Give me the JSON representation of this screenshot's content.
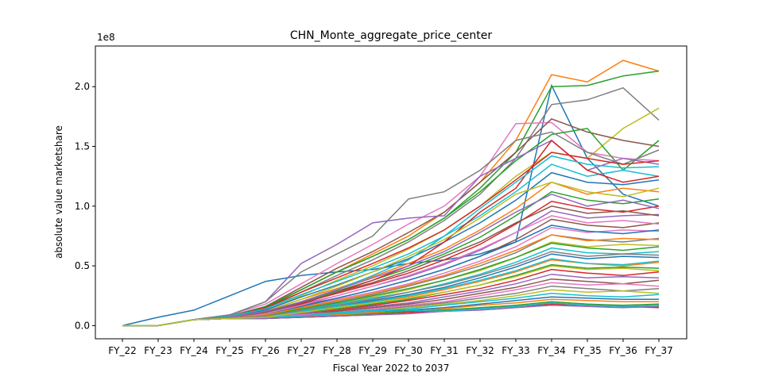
{
  "chart_data": {
    "type": "line",
    "title": "CHN_Monte_aggregate_price_center",
    "xlabel": "Fiscal Year 2022 to 2037",
    "ylabel": "absolute value marketshare",
    "y_offset_text": "1e8",
    "categories": [
      "FY_22",
      "FY_23",
      "FY_24",
      "FY_25",
      "FY_26",
      "FY_27",
      "FY_28",
      "FY_29",
      "FY_30",
      "FY_31",
      "FY_32",
      "FY_33",
      "FY_34",
      "FY_35",
      "FY_36",
      "FY_37"
    ],
    "yticks": [
      0.0,
      0.5,
      1.0,
      1.5,
      2.0
    ],
    "ytick_labels": [
      "0.0",
      "0.5",
      "1.0",
      "1.5",
      "2.0"
    ],
    "ylim": [
      -0.11,
      2.34
    ],
    "y_unit": "1e8",
    "grid": false,
    "legend": "none",
    "palette": [
      "#1f77b4",
      "#ff7f0e",
      "#2ca02c",
      "#d62728",
      "#9467bd",
      "#8c564b",
      "#e377c2",
      "#7f7f7f",
      "#bcbd22",
      "#17becf"
    ],
    "series_count_note": "hundreds of Monte Carlo runs",
    "series": [
      {
        "values": [
          0,
          0.07,
          0.13,
          0.25,
          0.37,
          0.42,
          0.45,
          0.47,
          0.52,
          0.55,
          0.6,
          0.7,
          2.01,
          1.4,
          1.1,
          1.0
        ],
        "color": "#1f77b4"
      },
      {
        "values": [
          0,
          0,
          0.05,
          0.08,
          0.15,
          0.3,
          0.45,
          0.6,
          0.75,
          0.95,
          1.2,
          1.55,
          2.1,
          2.04,
          2.22,
          2.13
        ],
        "color": "#ff7f0e"
      },
      {
        "values": [
          0,
          0,
          0.05,
          0.08,
          0.15,
          0.3,
          0.45,
          0.58,
          0.72,
          0.9,
          1.15,
          1.45,
          2.0,
          2.01,
          2.09,
          2.13
        ],
        "color": "#2ca02c"
      },
      {
        "values": [
          0,
          0,
          0.05,
          0.08,
          0.14,
          0.28,
          0.42,
          0.55,
          0.7,
          0.88,
          1.1,
          1.4,
          1.85,
          1.89,
          1.99,
          1.72
        ],
        "color": "#7f7f7f"
      },
      {
        "values": [
          0,
          0,
          0.05,
          0.07,
          0.13,
          0.25,
          0.38,
          0.5,
          0.64,
          0.8,
          1.0,
          1.25,
          1.45,
          1.4,
          1.65,
          1.82
        ],
        "color": "#bcbd22"
      },
      {
        "values": [
          0,
          0,
          0.05,
          0.09,
          0.18,
          0.35,
          0.52,
          0.68,
          0.85,
          1.0,
          1.25,
          1.69,
          1.7,
          1.45,
          1.4,
          1.38
        ],
        "color": "#e377c2"
      },
      {
        "values": [
          0,
          0,
          0.05,
          0.08,
          0.16,
          0.32,
          0.48,
          0.62,
          0.78,
          0.95,
          1.2,
          1.45,
          1.73,
          1.62,
          1.55,
          1.5
        ],
        "color": "#8c564b"
      },
      {
        "values": [
          0,
          0,
          0.05,
          0.08,
          0.16,
          0.3,
          0.45,
          0.58,
          0.72,
          0.9,
          1.12,
          1.38,
          1.6,
          1.65,
          1.3,
          1.55
        ],
        "color": "#2ca02c"
      },
      {
        "values": [
          0,
          0,
          0.05,
          0.09,
          0.2,
          0.52,
          0.68,
          0.86,
          0.9,
          0.92,
          1.25,
          1.4,
          1.55,
          1.3,
          1.4,
          1.35
        ],
        "color": "#9467bd"
      },
      {
        "values": [
          0,
          0,
          0.05,
          0.09,
          0.2,
          0.45,
          0.6,
          0.75,
          1.06,
          1.12,
          1.3,
          1.55,
          1.62,
          1.45,
          1.35,
          1.47
        ],
        "color": "#7f7f7f"
      },
      {
        "values": [
          0,
          0,
          0.05,
          0.08,
          0.15,
          0.28,
          0.4,
          0.52,
          0.65,
          0.8,
          1.0,
          1.22,
          1.45,
          1.4,
          1.35,
          1.38
        ],
        "color": "#d62728"
      },
      {
        "values": [
          0,
          0,
          0.05,
          0.08,
          0.14,
          0.26,
          0.37,
          0.48,
          0.6,
          0.75,
          0.92,
          1.12,
          1.35,
          1.25,
          1.3,
          1.25
        ],
        "color": "#17becf"
      },
      {
        "values": [
          0,
          0,
          0.05,
          0.07,
          0.13,
          0.24,
          0.34,
          0.45,
          0.56,
          0.7,
          0.86,
          1.05,
          1.28,
          1.2,
          1.18,
          1.22
        ],
        "color": "#1f77b4"
      },
      {
        "values": [
          0,
          0,
          0.05,
          0.07,
          0.12,
          0.22,
          0.31,
          0.41,
          0.52,
          0.64,
          0.8,
          0.98,
          1.2,
          1.1,
          1.15,
          1.12
        ],
        "color": "#ff7f0e"
      },
      {
        "values": [
          0,
          0,
          0.05,
          0.07,
          0.11,
          0.2,
          0.29,
          0.38,
          0.48,
          0.6,
          0.74,
          0.92,
          1.12,
          1.05,
          1.02,
          1.06
        ],
        "color": "#2ca02c"
      },
      {
        "values": [
          0,
          0,
          0.05,
          0.07,
          0.11,
          0.19,
          0.27,
          0.35,
          0.44,
          0.55,
          0.68,
          0.85,
          1.04,
          0.98,
          0.95,
          1.0
        ],
        "color": "#d62728"
      },
      {
        "values": [
          0,
          0,
          0.05,
          0.07,
          0.1,
          0.18,
          0.25,
          0.33,
          0.41,
          0.51,
          0.63,
          0.78,
          0.96,
          0.9,
          0.92,
          0.93
        ],
        "color": "#9467bd"
      },
      {
        "values": [
          0,
          0,
          0.05,
          0.06,
          0.1,
          0.17,
          0.23,
          0.3,
          0.38,
          0.47,
          0.58,
          0.72,
          0.89,
          0.84,
          0.82,
          0.86
        ],
        "color": "#8c564b"
      },
      {
        "values": [
          0,
          0,
          0.05,
          0.06,
          0.09,
          0.16,
          0.22,
          0.28,
          0.35,
          0.44,
          0.54,
          0.66,
          0.82,
          0.78,
          0.8,
          0.79
        ],
        "color": "#e377c2"
      },
      {
        "values": [
          0,
          0,
          0.05,
          0.06,
          0.09,
          0.15,
          0.2,
          0.26,
          0.33,
          0.41,
          0.5,
          0.61,
          0.76,
          0.72,
          0.7,
          0.73
        ],
        "color": "#7f7f7f"
      },
      {
        "values": [
          0,
          0,
          0.05,
          0.06,
          0.09,
          0.14,
          0.19,
          0.24,
          0.3,
          0.38,
          0.46,
          0.57,
          0.7,
          0.66,
          0.68,
          0.67
        ],
        "color": "#bcbd22"
      },
      {
        "values": [
          0,
          0,
          0.05,
          0.06,
          0.08,
          0.13,
          0.18,
          0.23,
          0.28,
          0.35,
          0.43,
          0.53,
          0.65,
          0.61,
          0.6,
          0.62
        ],
        "color": "#17becf"
      },
      {
        "values": [
          0,
          0,
          0.05,
          0.06,
          0.08,
          0.12,
          0.16,
          0.21,
          0.26,
          0.32,
          0.4,
          0.49,
          0.6,
          0.56,
          0.58,
          0.57
        ],
        "color": "#1f77b4"
      },
      {
        "values": [
          0,
          0,
          0.05,
          0.06,
          0.08,
          0.12,
          0.15,
          0.2,
          0.24,
          0.3,
          0.37,
          0.45,
          0.55,
          0.52,
          0.5,
          0.53
        ],
        "color": "#ff7f0e"
      },
      {
        "values": [
          0,
          0,
          0.05,
          0.06,
          0.07,
          0.11,
          0.14,
          0.18,
          0.22,
          0.28,
          0.34,
          0.42,
          0.51,
          0.48,
          0.49,
          0.48
        ],
        "color": "#2ca02c"
      },
      {
        "values": [
          0,
          0,
          0.05,
          0.06,
          0.07,
          0.1,
          0.13,
          0.17,
          0.21,
          0.26,
          0.31,
          0.38,
          0.47,
          0.44,
          0.42,
          0.45
        ],
        "color": "#d62728"
      },
      {
        "values": [
          0,
          0,
          0.05,
          0.06,
          0.07,
          0.1,
          0.12,
          0.16,
          0.19,
          0.24,
          0.29,
          0.35,
          0.43,
          0.4,
          0.41,
          0.4
        ],
        "color": "#9467bd"
      },
      {
        "values": [
          0,
          0,
          0.05,
          0.06,
          0.07,
          0.09,
          0.12,
          0.15,
          0.18,
          0.22,
          0.27,
          0.32,
          0.39,
          0.37,
          0.35,
          0.38
        ],
        "color": "#8c564b"
      },
      {
        "values": [
          0,
          0,
          0.05,
          0.06,
          0.07,
          0.09,
          0.11,
          0.14,
          0.17,
          0.2,
          0.25,
          0.3,
          0.36,
          0.34,
          0.35,
          0.33
        ],
        "color": "#e377c2"
      },
      {
        "values": [
          0,
          0,
          0.05,
          0.06,
          0.07,
          0.08,
          0.11,
          0.13,
          0.16,
          0.19,
          0.23,
          0.27,
          0.33,
          0.31,
          0.29,
          0.31
        ],
        "color": "#7f7f7f"
      },
      {
        "values": [
          0,
          0,
          0.05,
          0.06,
          0.06,
          0.08,
          0.1,
          0.12,
          0.15,
          0.18,
          0.21,
          0.25,
          0.3,
          0.28,
          0.29,
          0.27
        ],
        "color": "#bcbd22"
      },
      {
        "values": [
          0,
          0,
          0.05,
          0.06,
          0.06,
          0.08,
          0.1,
          0.12,
          0.14,
          0.17,
          0.2,
          0.23,
          0.27,
          0.25,
          0.24,
          0.26
        ],
        "color": "#17becf"
      },
      {
        "values": [
          0,
          0,
          0.05,
          0.06,
          0.06,
          0.07,
          0.09,
          0.11,
          0.13,
          0.15,
          0.18,
          0.21,
          0.24,
          0.23,
          0.22,
          0.22
        ],
        "color": "#1f77b4"
      },
      {
        "values": [
          0,
          0,
          0.05,
          0.06,
          0.06,
          0.07,
          0.09,
          0.11,
          0.12,
          0.14,
          0.17,
          0.19,
          0.22,
          0.21,
          0.2,
          0.2
        ],
        "color": "#ff7f0e"
      },
      {
        "values": [
          0,
          0,
          0.05,
          0.06,
          0.06,
          0.07,
          0.08,
          0.1,
          0.12,
          0.13,
          0.15,
          0.17,
          0.2,
          0.18,
          0.17,
          0.18
        ],
        "color": "#2ca02c"
      },
      {
        "values": [
          0,
          0,
          0.05,
          0.06,
          0.06,
          0.07,
          0.08,
          0.09,
          0.11,
          0.12,
          0.14,
          0.16,
          0.18,
          0.17,
          0.16,
          0.15
        ],
        "color": "#d62728"
      },
      {
        "values": [
          0,
          0,
          0.05,
          0.06,
          0.06,
          0.07,
          0.08,
          0.09,
          0.1,
          0.12,
          0.13,
          0.15,
          0.17,
          0.16,
          0.15,
          0.16
        ],
        "color": "#9467bd"
      },
      {
        "values": [
          0,
          0,
          0.05,
          0.06,
          0.07,
          0.08,
          0.11,
          0.13,
          0.13,
          0.12,
          0.14,
          0.16,
          0.19,
          0.17,
          0.16,
          0.17
        ],
        "color": "#17becf"
      },
      {
        "values": [
          0,
          0,
          0.05,
          0.06,
          0.09,
          0.18,
          0.28,
          0.38,
          0.5,
          0.7,
          0.95,
          1.15,
          1.55,
          1.3,
          1.2,
          1.25
        ],
        "color": "#d62728"
      },
      {
        "values": [
          0,
          0,
          0.05,
          0.06,
          0.1,
          0.2,
          0.3,
          0.42,
          0.55,
          0.75,
          0.98,
          1.2,
          1.42,
          1.35,
          1.32,
          1.33
        ],
        "color": "#17becf"
      },
      {
        "values": [
          0,
          0,
          0.05,
          0.07,
          0.12,
          0.22,
          0.33,
          0.45,
          0.58,
          0.72,
          0.9,
          1.1,
          1.2,
          1.12,
          1.08,
          1.15
        ],
        "color": "#bcbd22"
      },
      {
        "values": [
          0,
          0,
          0.05,
          0.07,
          0.12,
          0.2,
          0.3,
          0.4,
          0.5,
          0.62,
          0.78,
          0.95,
          1.1,
          1.0,
          1.05,
          0.98
        ],
        "color": "#9467bd"
      },
      {
        "values": [
          0,
          0,
          0.05,
          0.06,
          0.11,
          0.19,
          0.28,
          0.36,
          0.46,
          0.58,
          0.7,
          0.86,
          1.0,
          0.94,
          0.96,
          0.92
        ],
        "color": "#8c564b"
      },
      {
        "values": [
          0,
          0,
          0.05,
          0.06,
          0.1,
          0.17,
          0.25,
          0.33,
          0.42,
          0.52,
          0.64,
          0.78,
          0.92,
          0.86,
          0.88,
          0.85
        ],
        "color": "#e377c2"
      },
      {
        "values": [
          0,
          0,
          0.05,
          0.06,
          0.09,
          0.16,
          0.23,
          0.3,
          0.38,
          0.47,
          0.58,
          0.7,
          0.84,
          0.79,
          0.77,
          0.8
        ],
        "color": "#1f77b4"
      },
      {
        "values": [
          0,
          0,
          0.05,
          0.06,
          0.09,
          0.15,
          0.21,
          0.27,
          0.34,
          0.42,
          0.52,
          0.63,
          0.76,
          0.71,
          0.73,
          0.72
        ],
        "color": "#ff7f0e"
      },
      {
        "values": [
          0,
          0,
          0.05,
          0.06,
          0.08,
          0.14,
          0.19,
          0.25,
          0.31,
          0.38,
          0.47,
          0.57,
          0.69,
          0.65,
          0.63,
          0.66
        ],
        "color": "#2ca02c"
      },
      {
        "values": [
          0,
          0,
          0.05,
          0.06,
          0.08,
          0.13,
          0.17,
          0.22,
          0.28,
          0.34,
          0.42,
          0.51,
          0.62,
          0.58,
          0.6,
          0.59
        ],
        "color": "#7f7f7f"
      },
      {
        "values": [
          0,
          0,
          0.05,
          0.06,
          0.07,
          0.12,
          0.16,
          0.2,
          0.25,
          0.31,
          0.38,
          0.46,
          0.56,
          0.52,
          0.51,
          0.54
        ],
        "color": "#17becf"
      },
      {
        "values": [
          0,
          0,
          0.05,
          0.06,
          0.07,
          0.11,
          0.15,
          0.19,
          0.23,
          0.28,
          0.34,
          0.41,
          0.5,
          0.47,
          0.48,
          0.46
        ],
        "color": "#bcbd22"
      }
    ]
  }
}
